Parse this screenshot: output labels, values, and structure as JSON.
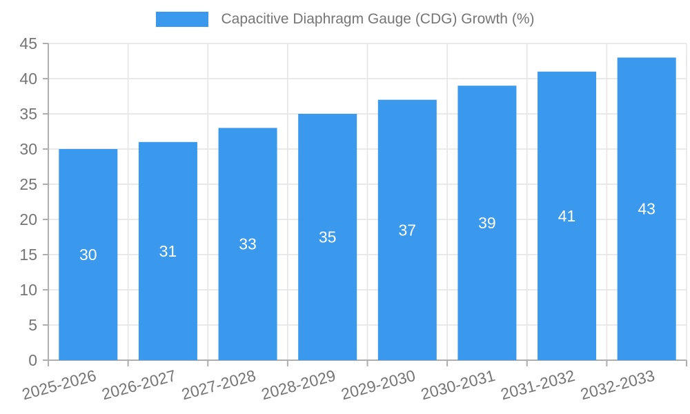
{
  "chart_data": {
    "type": "bar",
    "title": "Capacitive Diaphragm Gauge (CDG) Growth (%)",
    "categories": [
      "2025-2026",
      "2026-2027",
      "2027-2028",
      "2028-2029",
      "2029-2030",
      "2030-2031",
      "2031-2032",
      "2032-2033"
    ],
    "series": [
      {
        "name": "Capacitive Diaphragm Gauge (CDG) Growth (%)",
        "values": [
          30,
          31,
          33,
          35,
          37,
          39,
          41,
          43
        ],
        "color": "#3a99ec"
      }
    ],
    "xlabel": "",
    "ylabel": "",
    "ylim": [
      0,
      45
    ],
    "ytick_interval": 5,
    "yticks": [
      0,
      5,
      10,
      15,
      20,
      25,
      30,
      35,
      40,
      45
    ],
    "grid": true,
    "legend_position": "top",
    "value_label_position": "inside-center",
    "x_tick_rotation_deg": -15,
    "colors": {
      "bar": "#3a99ec",
      "axis_text": "#757575",
      "value_label": "#ffffff",
      "gridline": "#e6e6e6",
      "axis_line": "#aeaeae",
      "background": "#ffffff"
    }
  }
}
